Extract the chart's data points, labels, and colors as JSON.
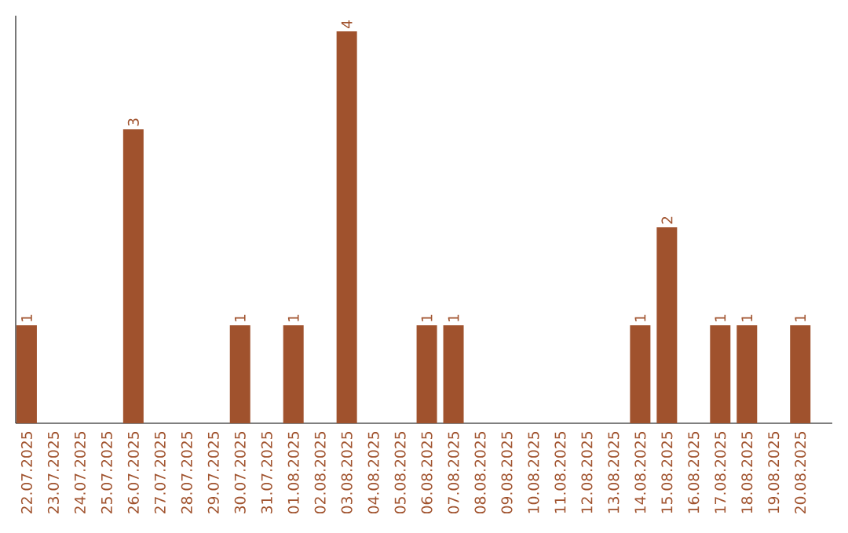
{
  "chart_data": {
    "type": "bar",
    "color": "#a0522d",
    "categories": [
      "22.07.2025",
      "23.07.2025",
      "24.07.2025",
      "25.07.2025",
      "26.07.2025",
      "27.07.2025",
      "28.07.2025",
      "29.07.2025",
      "30.07.2025",
      "31.07.2025",
      "01.08.2025",
      "02.08.2025",
      "03.08.2025",
      "04.08.2025",
      "05.08.2025",
      "06.08.2025",
      "07.08.2025",
      "08.08.2025",
      "09.08.2025",
      "10.08.2025",
      "11.08.2025",
      "12.08.2025",
      "13.08.2025",
      "14.08.2025",
      "15.08.2025",
      "16.08.2025",
      "17.08.2025",
      "18.08.2025",
      "19.08.2025",
      "20.08.2025"
    ],
    "values": [
      1,
      0,
      0,
      0,
      3,
      0,
      0,
      0,
      1,
      0,
      1,
      0,
      4,
      0,
      0,
      1,
      1,
      0,
      0,
      0,
      0,
      0,
      0,
      1,
      2,
      0,
      1,
      1,
      0,
      1
    ],
    "value_labels": [
      "1",
      null,
      null,
      null,
      "3",
      null,
      null,
      null,
      "1",
      null,
      "1",
      null,
      "4",
      null,
      null,
      "1",
      "1",
      null,
      null,
      null,
      null,
      null,
      null,
      "1",
      "2",
      null,
      "1",
      "1",
      null,
      "1"
    ]
  }
}
